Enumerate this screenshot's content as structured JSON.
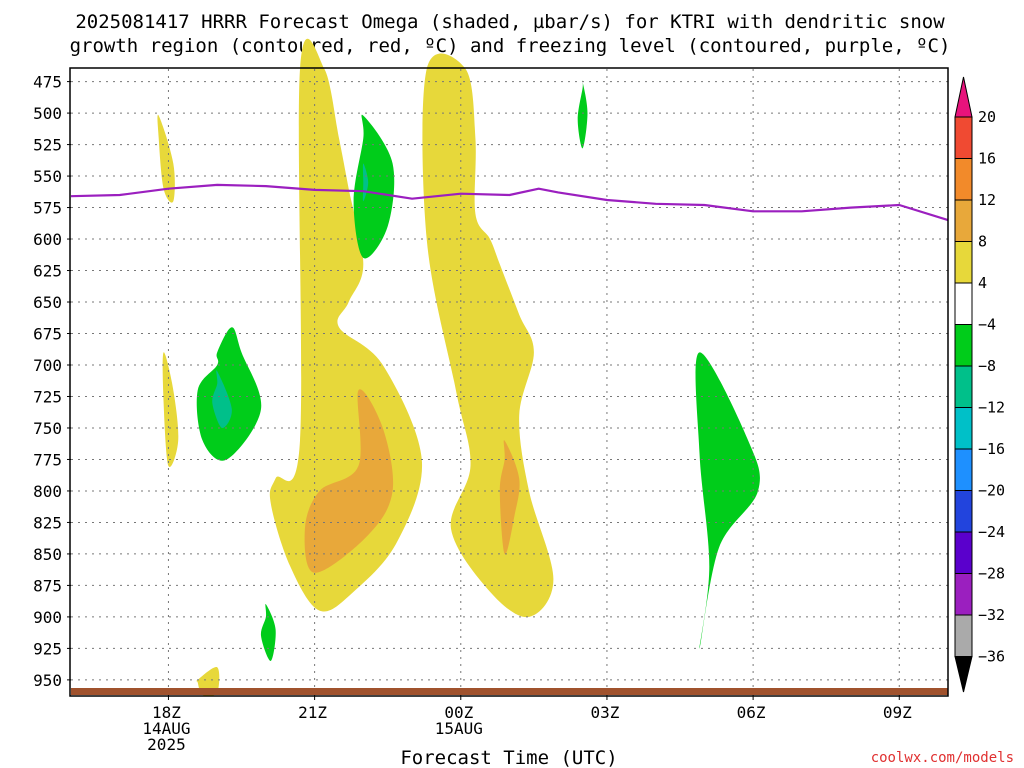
{
  "title_line1": "2025081417 HRRR Forecast Omega (shaded, µbar/s) for KTRI with dendritic snow",
  "title_line2": "growth region (contoured, red, ºC) and freezing level (contoured, purple, ºC)",
  "credit": "coolwx.com/models",
  "chart_data": {
    "type": "heatmap",
    "title": "2025081417 HRRR Forecast Omega (shaded, µbar/s) for KTRI with dendritic snow growth region (contoured, red, ºC) and freezing level (contoured, purple, ºC)",
    "xlabel": "Forecast Time (UTC)",
    "ylabel": "",
    "x_unit": "hours since 2025-08-14 17Z",
    "xlim": [
      -1,
      17
    ],
    "ylim": [
      962,
      465
    ],
    "x_ticks": [
      {
        "x": 1,
        "lines": [
          "18Z",
          "14AUG",
          "2025"
        ]
      },
      {
        "x": 4,
        "lines": [
          "21Z"
        ]
      },
      {
        "x": 7,
        "lines": [
          "00Z",
          "15AUG"
        ]
      },
      {
        "x": 10,
        "lines": [
          "03Z"
        ]
      },
      {
        "x": 13,
        "lines": [
          "06Z"
        ]
      },
      {
        "x": 16,
        "lines": [
          "09Z"
        ]
      }
    ],
    "y_ticks": [
      475,
      500,
      525,
      550,
      575,
      600,
      625,
      650,
      675,
      700,
      725,
      750,
      775,
      800,
      825,
      850,
      875,
      900,
      925,
      950
    ],
    "grid": true,
    "colorbar": {
      "labels": [
        "20",
        "16",
        "12",
        "8",
        "4",
        "−4",
        "−8",
        "−12",
        "−16",
        "−20",
        "−24",
        "−28",
        "−32",
        "−36"
      ],
      "colors": [
        "#e8137c",
        "#f04a32",
        "#f28a2a",
        "#e8a83a",
        "#e7d83a",
        "#ffffff",
        "#00cc1a",
        "#00c08a",
        "#00c0c8",
        "#1e90ff",
        "#2244dd",
        "#5a00cc",
        "#9b1fbf",
        "#aaaaaa",
        "#000000"
      ]
    },
    "series": [
      {
        "name": "freezing level",
        "color": "#9b1fbf",
        "x": [
          -1,
          0,
          1,
          2,
          3,
          4,
          5,
          6,
          7,
          8,
          8.6,
          9,
          10,
          11,
          12,
          13,
          14,
          15,
          16,
          17
        ],
        "y": [
          566,
          565,
          560,
          557,
          558,
          561,
          562,
          568,
          564,
          565,
          560,
          563,
          569,
          572,
          573,
          578,
          578,
          575,
          573,
          585
        ]
      }
    ],
    "omega_regions": [
      {
        "level": 4,
        "color": "#e7d83a",
        "x": [
          3.7,
          4.2,
          4.5,
          4.7,
          5,
          4.7,
          4.5,
          5.4,
          6.2,
          5.7,
          4.8,
          4.1,
          3.5,
          3.1,
          3.2,
          3.7
        ],
        "y": [
          465,
          465,
          520,
          560,
          620,
          650,
          670,
          700,
          775,
          840,
          880,
          895,
          860,
          810,
          790,
          760
        ]
      },
      {
        "level": 8,
        "color": "#e8a83a",
        "x": [
          4.9,
          5.4,
          5.6,
          5.1,
          4.0,
          3.8,
          4.1,
          4.9
        ],
        "y": [
          720,
          750,
          800,
          835,
          865,
          830,
          800,
          780
        ]
      },
      {
        "level": 4,
        "color": "#e7d83a",
        "x": [
          6.3,
          7.1,
          7.3,
          7.3,
          7.6,
          7.8,
          8.2,
          8.5,
          8.2,
          8.4,
          8.9,
          8.4,
          7.6,
          6.8,
          7.2,
          6.9,
          6.3
        ],
        "y": [
          465,
          465,
          520,
          580,
          600,
          620,
          660,
          690,
          740,
          800,
          870,
          900,
          880,
          830,
          780,
          720,
          600
        ]
      },
      {
        "level": 8,
        "color": "#e8a83a",
        "x": [
          7.9,
          8.2,
          8.1,
          7.9,
          7.8,
          7.9
        ],
        "y": [
          760,
          790,
          820,
          850,
          800,
          775
        ]
      },
      {
        "level": 4,
        "color": "#e7d83a",
        "x": [
          0.8,
          1.1,
          1.1,
          0.9,
          0.8
        ],
        "y": [
          502,
          540,
          570,
          560,
          520
        ]
      },
      {
        "level": 4,
        "color": "#e7d83a",
        "x": [
          0.9,
          1.1,
          1.2,
          1.0,
          0.9
        ],
        "y": [
          690,
          720,
          760,
          780,
          730
        ]
      },
      {
        "level": 4,
        "color": "#e7d83a",
        "x": [
          1.6,
          2.0,
          2.0,
          1.7,
          1.6
        ],
        "y": [
          950,
          940,
          960,
          962,
          952
        ]
      },
      {
        "level": -4,
        "color": "#00cc1a",
        "x": [
          5.0,
          5.6,
          5.5,
          5.0,
          4.8,
          5.0
        ],
        "y": [
          502,
          540,
          590,
          615,
          570,
          520
        ]
      },
      {
        "level": -8,
        "color": "#00c08a",
        "x": [
          5.0,
          5.1,
          5.0,
          5.0
        ],
        "y": [
          540,
          555,
          570,
          555
        ]
      },
      {
        "level": -4,
        "color": "#00cc1a",
        "x": [
          2.0,
          2.3,
          2.5,
          2.9,
          2.2,
          1.7,
          1.6,
          2.0
        ],
        "y": [
          690,
          670,
          690,
          735,
          775,
          760,
          720,
          700
        ]
      },
      {
        "level": -8,
        "color": "#00c08a",
        "x": [
          2.0,
          2.3,
          2.1,
          1.9,
          2.0
        ],
        "y": [
          705,
          735,
          750,
          730,
          715
        ]
      },
      {
        "level": -4,
        "color": "#00cc1a",
        "x": [
          9.5,
          9.6,
          9.5,
          9.4,
          9.5
        ],
        "y": [
          475,
          500,
          528,
          505,
          480
        ]
      },
      {
        "level": -4,
        "color": "#00cc1a",
        "x": [
          3.0,
          3.2,
          3.1,
          2.9,
          3.0
        ],
        "y": [
          890,
          910,
          935,
          915,
          900
        ]
      },
      {
        "level": -4,
        "color": "#00cc1a",
        "x": [
          11.9,
          12.9,
          13.1,
          12.3,
          11.9,
          12.1,
          11.9
        ],
        "y": [
          690,
          760,
          800,
          845,
          925,
          860,
          770
        ]
      }
    ]
  }
}
